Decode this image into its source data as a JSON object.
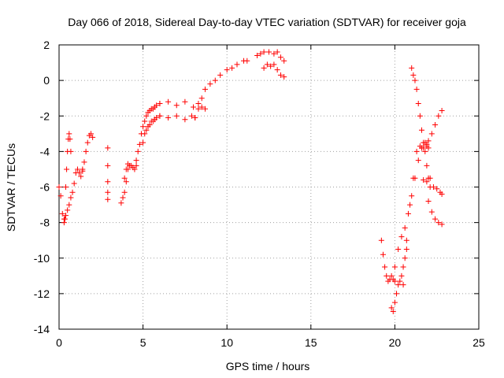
{
  "chart_data": {
    "type": "scatter",
    "title": "Day 066 of 2018, Sidereal Day-to-day VTEC variation (SDTVAR) for receiver goja",
    "xlabel": "GPS time / hours",
    "ylabel": "SDTVAR / TECUs",
    "xlim": [
      0,
      25
    ],
    "ylim": [
      -14,
      2
    ],
    "xticks": [
      0,
      5,
      10,
      15,
      20,
      25
    ],
    "yticks": [
      2,
      0,
      -2,
      -4,
      -6,
      -8,
      -10,
      -12,
      -14
    ],
    "grid": true,
    "marker": "+",
    "color": "#ff0000",
    "series": [
      {
        "name": "s1",
        "x": [
          0.0,
          0.1,
          0.2,
          0.3,
          0.35,
          0.4,
          0.45,
          0.5,
          0.55,
          0.6,
          0.65,
          0.7
        ],
        "y": [
          -6.0,
          -6.5,
          -7.5,
          -8.0,
          -7.8,
          -6.0,
          -5.0,
          -4.0,
          -3.3,
          -3.0,
          -3.3,
          -4.0
        ]
      },
      {
        "name": "s2",
        "x": [
          0.3,
          0.4,
          0.5,
          0.6,
          0.7,
          0.8,
          0.9,
          1.0,
          1.1,
          1.2,
          1.3,
          1.4
        ],
        "y": [
          -7.8,
          -7.6,
          -7.3,
          -7.0,
          -6.6,
          -6.3,
          -5.8,
          -5.2,
          -5.0,
          -5.2,
          -5.4,
          -5.1
        ]
      },
      {
        "name": "s3",
        "x": [
          1.4,
          1.5,
          1.6,
          1.7,
          1.8,
          1.9,
          2.0
        ],
        "y": [
          -5.0,
          -4.6,
          -4.0,
          -3.5,
          -3.1,
          -3.0,
          -3.2
        ]
      },
      {
        "name": "s4",
        "x": [
          2.9,
          2.9,
          2.9,
          2.9,
          2.9
        ],
        "y": [
          -3.8,
          -4.8,
          -5.7,
          -6.3,
          -6.7
        ]
      },
      {
        "name": "s5",
        "x": [
          3.7,
          3.8,
          3.9,
          4.0,
          4.1,
          4.2,
          4.3,
          4.4,
          4.5,
          4.6
        ],
        "y": [
          -6.9,
          -6.6,
          -6.3,
          -5.7,
          -5.0,
          -4.8,
          -4.8,
          -4.9,
          -5.0,
          -4.8
        ]
      },
      {
        "name": "s6",
        "x": [
          3.9,
          4.0,
          4.1
        ],
        "y": [
          -5.5,
          -5.0,
          -4.7
        ]
      },
      {
        "name": "s7",
        "x": [
          4.6,
          4.7,
          4.8,
          4.9,
          5.0,
          5.1,
          5.2,
          5.3,
          5.4,
          5.5,
          5.6,
          5.7,
          5.8,
          6.0
        ],
        "y": [
          -4.5,
          -4.0,
          -3.6,
          -3.0,
          -2.6,
          -2.3,
          -2.0,
          -1.8,
          -1.7,
          -1.6,
          -1.6,
          -1.5,
          -1.4,
          -1.3
        ]
      },
      {
        "name": "s8",
        "x": [
          5.0,
          5.1,
          5.2,
          5.3,
          5.4,
          5.5,
          5.6,
          5.7,
          5.8,
          6.0
        ],
        "y": [
          -3.5,
          -3.0,
          -2.8,
          -2.6,
          -2.5,
          -2.3,
          -2.3,
          -2.2,
          -2.1,
          -2.0
        ]
      },
      {
        "name": "s9",
        "x": [
          6.0,
          6.5,
          7.0,
          7.5,
          8.0,
          8.3,
          8.5,
          8.7
        ],
        "y": [
          -1.3,
          -1.2,
          -1.4,
          -1.2,
          -1.5,
          -1.3,
          -1.5,
          -1.6
        ]
      },
      {
        "name": "s10",
        "x": [
          6.0,
          6.5,
          7.0,
          7.5,
          7.9,
          8.1
        ],
        "y": [
          -2.0,
          -2.1,
          -2.0,
          -2.2,
          -2.0,
          -2.1
        ]
      },
      {
        "name": "s11",
        "x": [
          8.1,
          8.3,
          8.5,
          8.7,
          9.0,
          9.3,
          9.6,
          10.0,
          10.3,
          10.6,
          11.0,
          11.2
        ],
        "y": [
          -2.1,
          -1.6,
          -1.0,
          -0.5,
          -0.2,
          0.0,
          0.3,
          0.6,
          0.7,
          0.9,
          1.1,
          1.1
        ]
      },
      {
        "name": "s12",
        "x": [
          11.8,
          12.0,
          12.2,
          12.5,
          12.8,
          13.0,
          13.2,
          13.4
        ],
        "y": [
          1.4,
          1.5,
          1.6,
          1.6,
          1.5,
          1.6,
          1.3,
          1.1
        ]
      },
      {
        "name": "s13",
        "x": [
          12.2,
          12.4,
          12.6,
          12.8,
          13.0,
          13.2,
          13.4
        ],
        "y": [
          0.7,
          0.9,
          0.8,
          0.9,
          0.6,
          0.3,
          0.2
        ]
      },
      {
        "name": "s14",
        "x": [
          19.2,
          19.3,
          19.4,
          19.5,
          19.6,
          19.7,
          19.8,
          19.9,
          20.0
        ],
        "y": [
          -9.0,
          -9.8,
          -10.5,
          -11.0,
          -11.3,
          -11.2,
          -11.0,
          -11.2,
          -11.3
        ]
      },
      {
        "name": "s15",
        "x": [
          19.8,
          19.9,
          20.0,
          20.1,
          20.2,
          20.3,
          20.4,
          20.5,
          20.6,
          20.7
        ],
        "y": [
          -12.8,
          -13.0,
          -12.5,
          -12.0,
          -11.5,
          -11.3,
          -11.0,
          -10.5,
          -10.0,
          -9.5
        ]
      },
      {
        "name": "s16",
        "x": [
          20.0,
          20.2,
          20.4,
          20.6,
          20.8,
          21.0,
          21.2,
          21.4,
          21.6,
          21.8,
          22.0
        ],
        "y": [
          -10.5,
          -9.5,
          -8.8,
          -8.3,
          -7.5,
          -6.5,
          -5.5,
          -4.5,
          -3.8,
          -3.5,
          -3.8
        ]
      },
      {
        "name": "s17",
        "x": [
          20.5,
          20.7,
          20.9,
          21.1,
          21.3,
          21.5,
          21.7,
          21.9
        ],
        "y": [
          -11.5,
          -9.0,
          -7.0,
          -5.5,
          -4.0,
          -3.7,
          -3.8,
          -3.7
        ]
      },
      {
        "name": "s18",
        "x": [
          21.0,
          21.1,
          21.2,
          21.3,
          21.4,
          21.5,
          21.6,
          21.7,
          21.8,
          21.9,
          22.0,
          22.1
        ],
        "y": [
          0.7,
          0.3,
          0.0,
          -0.5,
          -1.3,
          -2.0,
          -2.8,
          -3.5,
          -4.0,
          -4.8,
          -5.5,
          -6.0
        ]
      },
      {
        "name": "s19",
        "x": [
          22.0,
          22.2,
          22.4,
          22.6,
          22.8
        ],
        "y": [
          -6.8,
          -7.4,
          -7.8,
          -8.0,
          -8.1
        ]
      },
      {
        "name": "s20",
        "x": [
          21.7,
          21.9,
          22.1,
          22.3,
          22.5,
          22.7,
          22.8
        ],
        "y": [
          -5.6,
          -5.7,
          -5.5,
          -6.0,
          -6.1,
          -6.3,
          -6.4
        ]
      },
      {
        "name": "s21",
        "x": [
          21.9,
          22.0,
          22.2,
          22.4,
          22.6,
          22.8
        ],
        "y": [
          -3.6,
          -3.4,
          -3.0,
          -2.5,
          -2.0,
          -1.7
        ]
      }
    ]
  }
}
